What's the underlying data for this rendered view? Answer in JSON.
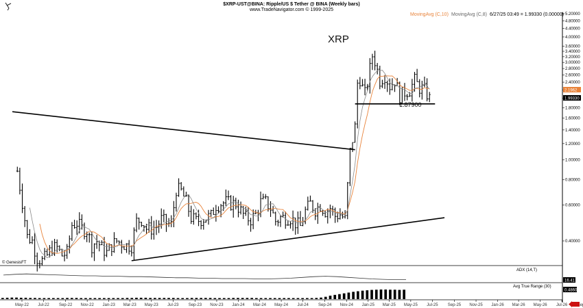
{
  "header": {
    "title": "$XRP-UST@BINA:  Ripple/US $ Tether @ BINA  (Weekly bars)",
    "subtitle": "www.TradeNavigator.com © 1999-2025",
    "ma10_label": "MovingAvg (C,10)",
    "ma8_label": "MovingAvg (C,8)",
    "datetime_value": "6/27/25 03:49 = 1.99330 (0.00000)",
    "ma10_color": "#e8833a",
    "ma8_color": "#888888"
  },
  "watermark": "© GenesisFT",
  "chart_data": [
    {
      "type": "ohlc",
      "annotation_title": "XRP",
      "yscale": "log",
      "ylim": [
        0.32,
        5.2
      ],
      "y_ticks": [
        "5.20000",
        "4.80000",
        "4.40000",
        "4.00000",
        "3.60000",
        "3.40000",
        "3.20000",
        "3.00000",
        "2.80000",
        "2.60000",
        "2.40000",
        "2.20000",
        "2.00000",
        "1.80000",
        "1.60000",
        "1.40000",
        "1.20000",
        "1.00000",
        "0.80000",
        "0.60000",
        "0.40000"
      ],
      "x_ticks": [
        "May-22",
        "Jul-22",
        "Sep-22",
        "Nov-22",
        "Jan-23",
        "Mar-23",
        "May-23",
        "Jul-23",
        "Sep-23",
        "Nov-23",
        "Jan-24",
        "Mar-24",
        "May-24",
        "Jul-24",
        "Sep-24",
        "Nov-24",
        "Jan-25",
        "Mar-25",
        "May-25",
        "Jul-25",
        "Sep-25",
        "Nov-25",
        "Jan-26",
        "Mar-26",
        "May-26",
        "Jul-26",
        "Sep-26"
      ],
      "last_price_label": "1.99330",
      "ma_price_label": "2.1962",
      "support_level_label": "1.87900",
      "support_level": 1.879,
      "ohlc_points": [
        {
          "t": "2022-04-18",
          "c": 0.88
        },
        {
          "t": "2022-05-02",
          "c": 0.62
        },
        {
          "t": "2022-05-16",
          "c": 0.42
        },
        {
          "t": "2022-05-30",
          "c": 0.4
        },
        {
          "t": "2022-06-13",
          "c": 0.33
        },
        {
          "t": "2022-06-27",
          "c": 0.32
        },
        {
          "t": "2022-07-11",
          "c": 0.34
        },
        {
          "t": "2022-07-25",
          "c": 0.37
        },
        {
          "t": "2022-08-08",
          "c": 0.37
        },
        {
          "t": "2022-08-22",
          "c": 0.34
        },
        {
          "t": "2022-09-05",
          "c": 0.35
        },
        {
          "t": "2022-09-19",
          "c": 0.48
        },
        {
          "t": "2022-10-03",
          "c": 0.49
        },
        {
          "t": "2022-10-17",
          "c": 0.46
        },
        {
          "t": "2022-10-31",
          "c": 0.45
        },
        {
          "t": "2022-11-14",
          "c": 0.38
        },
        {
          "t": "2022-11-28",
          "c": 0.4
        },
        {
          "t": "2022-12-12",
          "c": 0.37
        },
        {
          "t": "2022-12-26",
          "c": 0.35
        },
        {
          "t": "2023-01-09",
          "c": 0.38
        },
        {
          "t": "2023-01-23",
          "c": 0.4
        },
        {
          "t": "2023-02-06",
          "c": 0.39
        },
        {
          "t": "2023-02-20",
          "c": 0.38
        },
        {
          "t": "2023-03-06",
          "c": 0.38
        },
        {
          "t": "2023-03-20",
          "c": 0.5
        },
        {
          "t": "2023-04-03",
          "c": 0.51
        },
        {
          "t": "2023-04-17",
          "c": 0.46
        },
        {
          "t": "2023-05-01",
          "c": 0.46
        },
        {
          "t": "2023-05-15",
          "c": 0.47
        },
        {
          "t": "2023-05-29",
          "c": 0.51
        },
        {
          "t": "2023-06-12",
          "c": 0.49
        },
        {
          "t": "2023-06-26",
          "c": 0.48
        },
        {
          "t": "2023-07-10",
          "c": 0.72
        },
        {
          "t": "2023-07-24",
          "c": 0.7
        },
        {
          "t": "2023-08-07",
          "c": 0.62
        },
        {
          "t": "2023-08-21",
          "c": 0.52
        },
        {
          "t": "2023-09-04",
          "c": 0.5
        },
        {
          "t": "2023-09-18",
          "c": 0.51
        },
        {
          "t": "2023-10-02",
          "c": 0.52
        },
        {
          "t": "2023-10-16",
          "c": 0.53
        },
        {
          "t": "2023-10-30",
          "c": 0.6
        },
        {
          "t": "2023-11-13",
          "c": 0.61
        },
        {
          "t": "2023-11-27",
          "c": 0.62
        },
        {
          "t": "2023-12-11",
          "c": 0.61
        },
        {
          "t": "2023-12-25",
          "c": 0.61
        },
        {
          "t": "2024-01-08",
          "c": 0.56
        },
        {
          "t": "2024-01-22",
          "c": 0.52
        },
        {
          "t": "2024-02-05",
          "c": 0.51
        },
        {
          "t": "2024-02-19",
          "c": 0.54
        },
        {
          "t": "2024-03-04",
          "c": 0.62
        },
        {
          "t": "2024-03-18",
          "c": 0.62
        },
        {
          "t": "2024-04-01",
          "c": 0.58
        },
        {
          "t": "2024-04-15",
          "c": 0.5
        },
        {
          "t": "2024-04-29",
          "c": 0.52
        },
        {
          "t": "2024-05-13",
          "c": 0.52
        },
        {
          "t": "2024-05-27",
          "c": 0.52
        },
        {
          "t": "2024-06-10",
          "c": 0.49
        },
        {
          "t": "2024-06-24",
          "c": 0.47
        },
        {
          "t": "2024-07-08",
          "c": 0.56
        },
        {
          "t": "2024-07-22",
          "c": 0.61
        },
        {
          "t": "2024-08-05",
          "c": 0.57
        },
        {
          "t": "2024-08-19",
          "c": 0.6
        },
        {
          "t": "2024-09-02",
          "c": 0.56
        },
        {
          "t": "2024-09-16",
          "c": 0.58
        },
        {
          "t": "2024-09-30",
          "c": 0.53
        },
        {
          "t": "2024-10-14",
          "c": 0.54
        },
        {
          "t": "2024-10-28",
          "c": 0.51
        },
        {
          "t": "2024-11-11",
          "c": 1.1
        },
        {
          "t": "2024-11-25",
          "c": 1.45
        },
        {
          "t": "2024-12-02",
          "c": 2.4
        },
        {
          "t": "2024-12-09",
          "c": 2.5
        },
        {
          "t": "2024-12-16",
          "c": 2.25
        },
        {
          "t": "2024-12-23",
          "c": 2.1
        },
        {
          "t": "2024-12-30",
          "c": 2.4
        },
        {
          "t": "2025-01-13",
          "c": 3.25
        },
        {
          "t": "2025-01-20",
          "c": 3.05
        },
        {
          "t": "2025-02-03",
          "c": 2.45
        },
        {
          "t": "2025-02-17",
          "c": 2.6
        },
        {
          "t": "2025-03-03",
          "c": 2.3
        },
        {
          "t": "2025-03-17",
          "c": 2.45
        },
        {
          "t": "2025-03-31",
          "c": 2.05
        },
        {
          "t": "2025-04-14",
          "c": 2.15
        },
        {
          "t": "2025-04-28",
          "c": 2.2
        },
        {
          "t": "2025-05-12",
          "c": 2.45
        },
        {
          "t": "2025-05-26",
          "c": 2.25
        },
        {
          "t": "2025-06-09",
          "c": 2.2
        },
        {
          "t": "2025-06-23",
          "c": 1.99
        }
      ],
      "trendlines": [
        {
          "name": "descending-resistance",
          "from": {
            "t": "2022-04-04",
            "y": 1.72
          },
          "to": {
            "t": "2024-11-25",
            "y": 1.12
          }
        },
        {
          "name": "ascending-support",
          "from": {
            "t": "2023-03-06",
            "y": 0.32
          },
          "to": {
            "t": "2025-08-04",
            "y": 0.52
          }
        }
      ]
    },
    {
      "type": "line",
      "panel_label": "ADX (14,T)",
      "value_label": "16.41",
      "values": [
        28,
        30,
        31,
        30,
        29,
        28,
        27,
        26,
        26,
        25,
        25,
        24,
        24,
        23,
        22,
        21,
        21,
        20,
        20,
        19,
        19,
        19,
        18,
        18,
        19,
        20,
        22,
        24,
        25,
        24,
        22,
        20,
        18,
        17,
        16,
        16
      ]
    },
    {
      "type": "bar",
      "panel_label": "Avg True Range (30)",
      "value_label": "0.4860",
      "values": [
        0.06,
        0.07,
        0.08,
        0.08,
        0.07,
        0.07,
        0.06,
        0.06,
        0.05,
        0.05,
        0.05,
        0.05,
        0.05,
        0.05,
        0.06,
        0.06,
        0.06,
        0.05,
        0.05,
        0.05,
        0.04,
        0.04,
        0.05,
        0.05,
        0.05,
        0.05,
        0.05,
        0.06,
        0.06,
        0.07,
        0.07,
        0.07,
        0.06,
        0.06,
        0.06,
        0.06,
        0.06,
        0.06,
        0.05,
        0.05,
        0.05,
        0.06,
        0.06,
        0.06,
        0.06,
        0.06,
        0.05,
        0.05,
        0.05,
        0.05,
        0.06,
        0.06,
        0.06,
        0.06,
        0.06,
        0.05,
        0.05,
        0.05,
        0.05,
        0.05,
        0.05,
        0.05,
        0.05,
        0.05,
        0.05,
        0.05,
        0.05,
        0.05,
        0.06,
        0.08,
        0.12,
        0.18,
        0.22,
        0.26,
        0.3,
        0.34,
        0.38,
        0.41,
        0.44,
        0.46,
        0.48,
        0.49,
        0.5,
        0.5,
        0.49,
        0.49,
        0.48,
        0.49
      ]
    }
  ]
}
